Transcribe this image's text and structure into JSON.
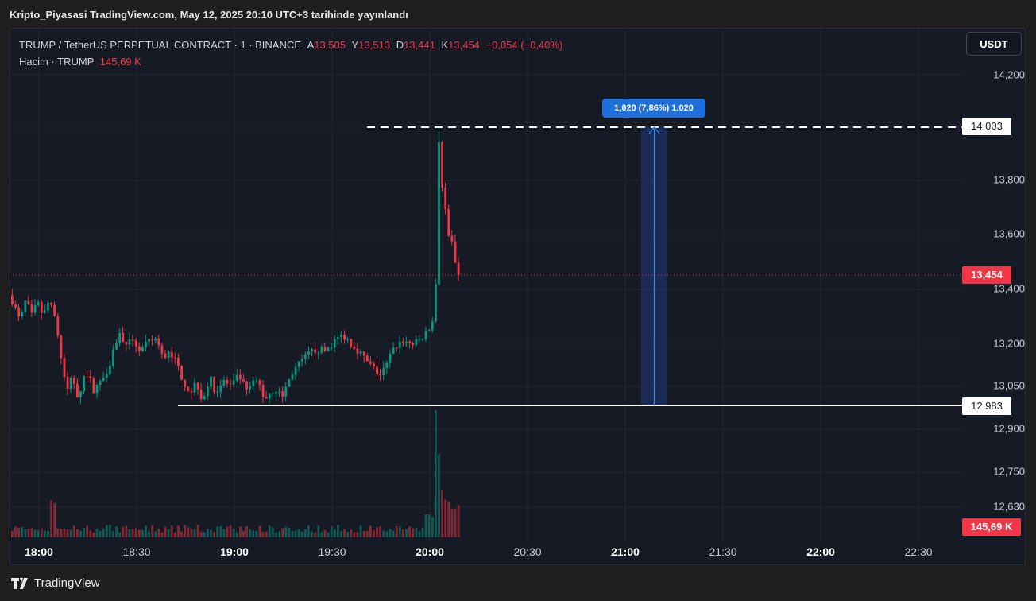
{
  "caption": "Kripto_Piyasasi TradingView.com, May 12, 2025 20:10 UTC+3 tarihinde yayınlandı",
  "legend": {
    "symbol": "TRUMP / TetherUS PERPETUAL CONTRACT · 1 · BINANCE",
    "open_label": "A",
    "open": "13,505",
    "high_label": "Y",
    "high": "13,513",
    "low_label": "D",
    "low": "13,441",
    "close_label": "K",
    "close": "13,454",
    "change": "−0,054 (−0,40%)",
    "volume_label": "Hacim · TRUMP",
    "volume": "145,69 K"
  },
  "currency_button": "USDT",
  "price_axis": {
    "ticks": [
      "14,200",
      "13,800",
      "13,600",
      "13,400",
      "13,200",
      "13,050",
      "12,900",
      "12,750",
      "12,630"
    ],
    "high_line_tag": "14,003",
    "low_line_tag": "12,983",
    "last_price_tag": "13,454",
    "volume_tag": "145,69 K"
  },
  "time_axis": [
    {
      "label": "18:00",
      "bold": true
    },
    {
      "label": "18:30",
      "bold": false
    },
    {
      "label": "19:00",
      "bold": true
    },
    {
      "label": "19:30",
      "bold": false
    },
    {
      "label": "20:00",
      "bold": true
    },
    {
      "label": "20:30",
      "bold": false
    },
    {
      "label": "21:00",
      "bold": true
    },
    {
      "label": "21:30",
      "bold": false
    },
    {
      "label": "22:00",
      "bold": true
    },
    {
      "label": "22:30",
      "bold": false
    }
  ],
  "measure_label": "1,020 (7,86%) 1.020",
  "footer": "TradingView",
  "colors": {
    "up": "#089981",
    "down": "#f23645",
    "background": "#161a25",
    "measure": "#1e6fd9"
  }
}
